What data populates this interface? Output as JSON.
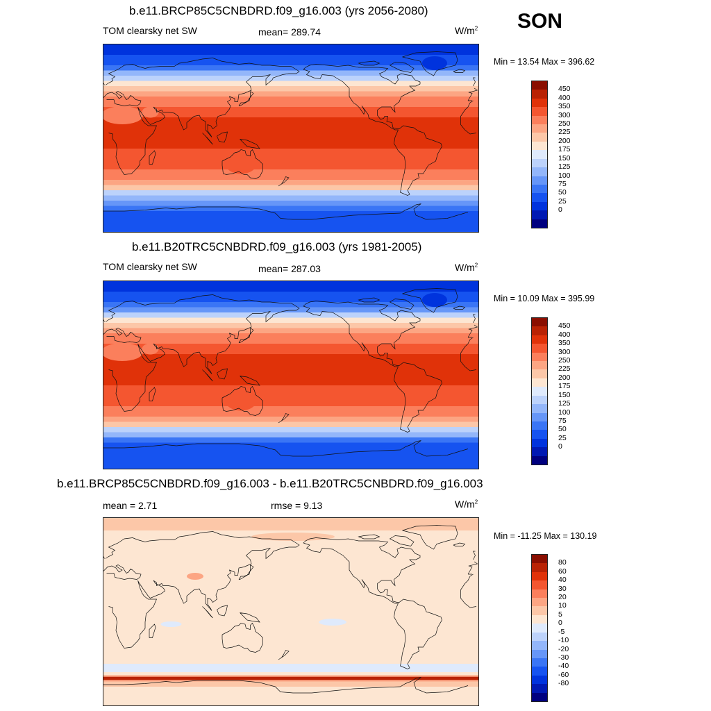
{
  "season": "SON",
  "panels": [
    {
      "title": "b.e11.BRCP85C5CNBDRD.f09_g16.003 (yrs 2056-2080)",
      "variable": "TOM clearsky net SW",
      "stat_text": "mean= 289.74",
      "units": "W/m",
      "units_exp": "2",
      "minmax": "Min =  13.54 Max = 396.62",
      "colorbar_labels": [
        "450",
        "400",
        "350",
        "300",
        "250",
        "225",
        "200",
        "175",
        "150",
        "125",
        "100",
        "75",
        "50",
        "25",
        "0"
      ]
    },
    {
      "title": "b.e11.B20TRC5CNBDRD.f09_g16.003 (yrs 1981-2005)",
      "variable": "TOM clearsky net SW",
      "stat_text": "mean= 287.03",
      "units": "W/m",
      "units_exp": "2",
      "minmax": "Min =  10.09 Max = 395.99",
      "colorbar_labels": [
        "450",
        "400",
        "350",
        "300",
        "250",
        "225",
        "200",
        "175",
        "150",
        "125",
        "100",
        "75",
        "50",
        "25",
        "0"
      ]
    },
    {
      "title": "b.e11.BRCP85C5CNBDRD.f09_g16.003 - b.e11.B20TRC5CNBDRD.f09_g16.003",
      "mean_text": "mean =   2.71",
      "rmse_text": "rmse =   9.13",
      "units": "W/m",
      "units_exp": "2",
      "minmax": "Min = -11.25 Max = 130.19",
      "colorbar_labels": [
        "80",
        "60",
        "40",
        "30",
        "20",
        "10",
        "5",
        "0",
        "-5",
        "-10",
        "-20",
        "-30",
        "-40",
        "-60",
        "-80"
      ]
    }
  ],
  "palette": [
    "#00007f",
    "#0019b3",
    "#0033dd",
    "#1653f0",
    "#3a75f5",
    "#6696f8",
    "#93b6fa",
    "#bcd2fb",
    "#dfeafc",
    "#fde6d2",
    "#fcc7a8",
    "#fca583",
    "#fb7f5c",
    "#f45630",
    "#e03209",
    "#b92204",
    "#8a0e00"
  ],
  "chart_data": [
    {
      "type": "heatmap",
      "title": "b.e11.BRCP85C5CNBDRD.f09_g16.003 (yrs 2056-2080)",
      "variable": "TOM clearsky net SW",
      "units": "W/m2",
      "mean": 289.74,
      "min": 13.54,
      "max": 396.62,
      "contour_levels": [
        0,
        25,
        50,
        75,
        100,
        125,
        150,
        175,
        200,
        225,
        250,
        300,
        350,
        400,
        450
      ],
      "zonal_bands_deg": [
        90,
        80,
        70,
        65,
        60,
        55,
        50,
        45,
        40,
        35,
        30,
        25,
        20,
        -10,
        -20,
        -30,
        -40,
        -45,
        -50,
        -55,
        -60,
        -65,
        -70,
        -80,
        -90
      ],
      "zonal_band_values": [
        20,
        45,
        70,
        100,
        140,
        180,
        210,
        240,
        265,
        290,
        315,
        345,
        375,
        340,
        310,
        280,
        245,
        205,
        140,
        110,
        75,
        50,
        30,
        10
      ]
    },
    {
      "type": "heatmap",
      "title": "b.e11.B20TRC5CNBDRD.f09_g16.003 (yrs 1981-2005)",
      "variable": "TOM clearsky net SW",
      "units": "W/m2",
      "mean": 287.03,
      "min": 10.09,
      "max": 395.99,
      "contour_levels": [
        0,
        25,
        50,
        75,
        100,
        125,
        150,
        175,
        200,
        225,
        250,
        300,
        350,
        400,
        450
      ],
      "zonal_bands_deg": [
        90,
        80,
        70,
        65,
        60,
        55,
        50,
        45,
        40,
        35,
        30,
        25,
        20,
        -10,
        -20,
        -30,
        -40,
        -45,
        -50,
        -55,
        -60,
        -65,
        -70,
        -80,
        -90
      ],
      "zonal_band_values": [
        18,
        42,
        68,
        95,
        135,
        178,
        208,
        238,
        262,
        288,
        312,
        342,
        372,
        338,
        308,
        278,
        242,
        200,
        135,
        105,
        70,
        46,
        28,
        10
      ]
    },
    {
      "type": "heatmap",
      "title": "b.e11.BRCP85C5CNBDRD.f09_g16.003 - b.e11.B20TRC5CNBDRD.f09_g16.003",
      "units": "W/m2",
      "mean": 2.71,
      "rmse": 9.13,
      "min": -11.25,
      "max": 130.19,
      "contour_levels": [
        -80,
        -60,
        -40,
        -30,
        -20,
        -10,
        -5,
        0,
        5,
        10,
        20,
        30,
        40,
        60,
        80
      ]
    }
  ]
}
